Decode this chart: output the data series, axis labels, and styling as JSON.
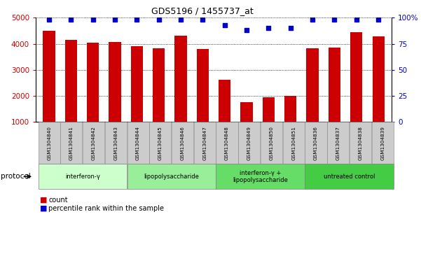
{
  "title": "GDS5196 / 1455737_at",
  "samples": [
    "GSM1304840",
    "GSM1304841",
    "GSM1304842",
    "GSM1304843",
    "GSM1304844",
    "GSM1304845",
    "GSM1304846",
    "GSM1304847",
    "GSM1304848",
    "GSM1304849",
    "GSM1304850",
    "GSM1304851",
    "GSM1304836",
    "GSM1304837",
    "GSM1304838",
    "GSM1304839"
  ],
  "counts": [
    4490,
    4160,
    4040,
    4060,
    3920,
    3840,
    4300,
    3800,
    2620,
    1750,
    1960,
    1990,
    3820,
    3860,
    4450,
    4280
  ],
  "percentile_ranks": [
    98,
    98,
    98,
    98,
    98,
    98,
    98,
    98,
    93,
    88,
    90,
    90,
    98,
    98,
    98,
    98
  ],
  "groups": [
    {
      "label": "interferon-γ",
      "start": 0,
      "end": 4,
      "color": "#ccffcc"
    },
    {
      "label": "lipopolysaccharide",
      "start": 4,
      "end": 8,
      "color": "#99ee99"
    },
    {
      "label": "interferon-γ +\nlipopolysaccharide",
      "start": 8,
      "end": 12,
      "color": "#66dd66"
    },
    {
      "label": "untreated control",
      "start": 12,
      "end": 16,
      "color": "#44cc44"
    }
  ],
  "bar_color": "#cc0000",
  "dot_color": "#0000cc",
  "ylim_left": [
    1000,
    5000
  ],
  "ylim_right": [
    0,
    100
  ],
  "yticks_left": [
    1000,
    2000,
    3000,
    4000,
    5000
  ],
  "yticks_right": [
    0,
    25,
    50,
    75,
    100
  ],
  "yticklabels_right": [
    "0",
    "25",
    "50",
    "75",
    "100%"
  ],
  "tick_color_left": "#cc0000",
  "tick_color_right": "#0000cc",
  "bar_width": 0.55,
  "bg_color": "#ffffff",
  "label_count": "count",
  "label_percentile": "percentile rank within the sample",
  "protocol_label": "protocol",
  "tick_label_bg": "#cccccc"
}
